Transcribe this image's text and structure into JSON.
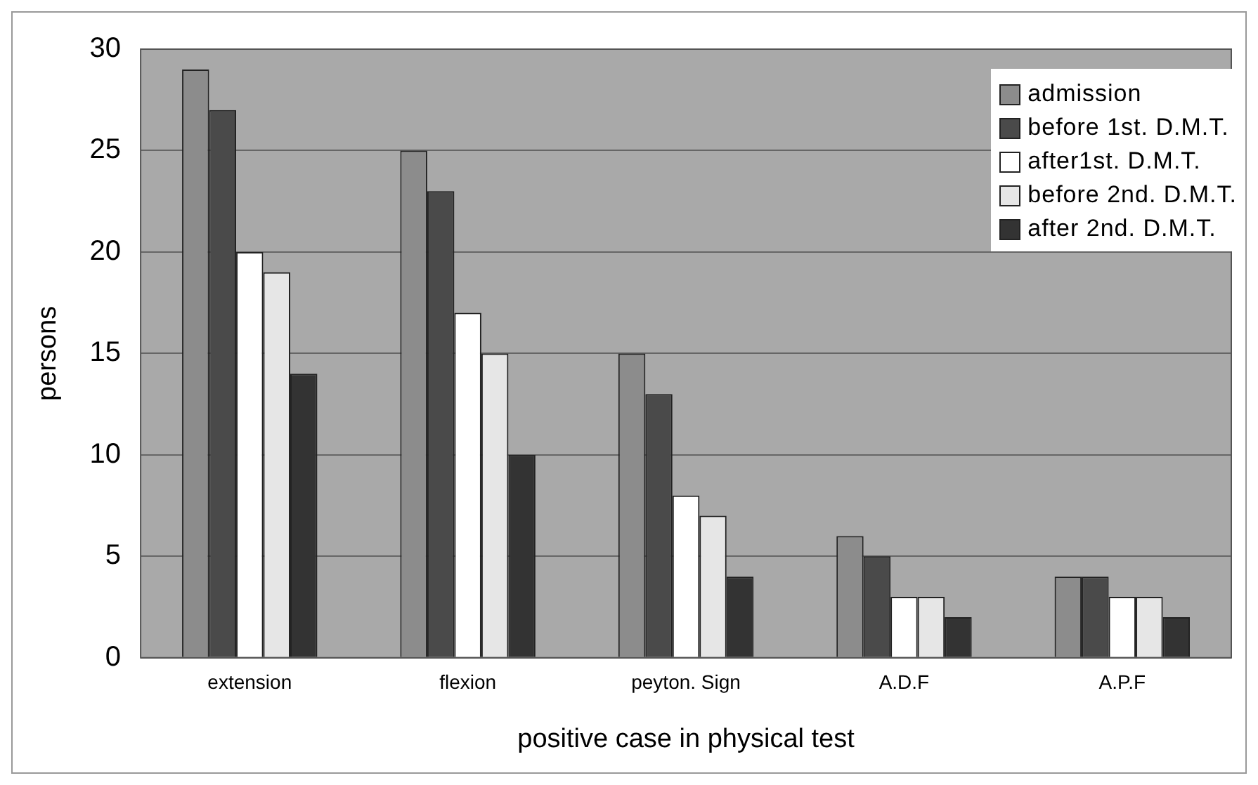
{
  "chart_data": {
    "type": "bar",
    "xlabel": "positive case in physical test",
    "ylabel": "persons",
    "categories": [
      "extension",
      "flexion",
      "peyton. Sign",
      "A.D.F",
      "A.P.F"
    ],
    "series": [
      {
        "name": "admission",
        "color": "#8c8c8c",
        "values": [
          29,
          25,
          15,
          6,
          4
        ]
      },
      {
        "name": "before 1st. D.M.T.",
        "color": "#4a4a4a",
        "values": [
          27,
          23,
          13,
          5,
          4
        ]
      },
      {
        "name": "after1st. D.M.T.",
        "color": "#ffffff",
        "values": [
          20,
          17,
          8,
          3,
          3
        ]
      },
      {
        "name": "before 2nd. D.M.T.",
        "color": "#e6e6e6",
        "values": [
          19,
          15,
          7,
          3,
          3
        ]
      },
      {
        "name": "after 2nd. D.M.T.",
        "color": "#333333",
        "values": [
          14,
          10,
          4,
          2,
          2
        ]
      }
    ],
    "ylim": [
      0,
      30
    ],
    "yticks": [
      0,
      5,
      10,
      15,
      20,
      25,
      30
    ],
    "grid": "y",
    "legend": "top right"
  }
}
